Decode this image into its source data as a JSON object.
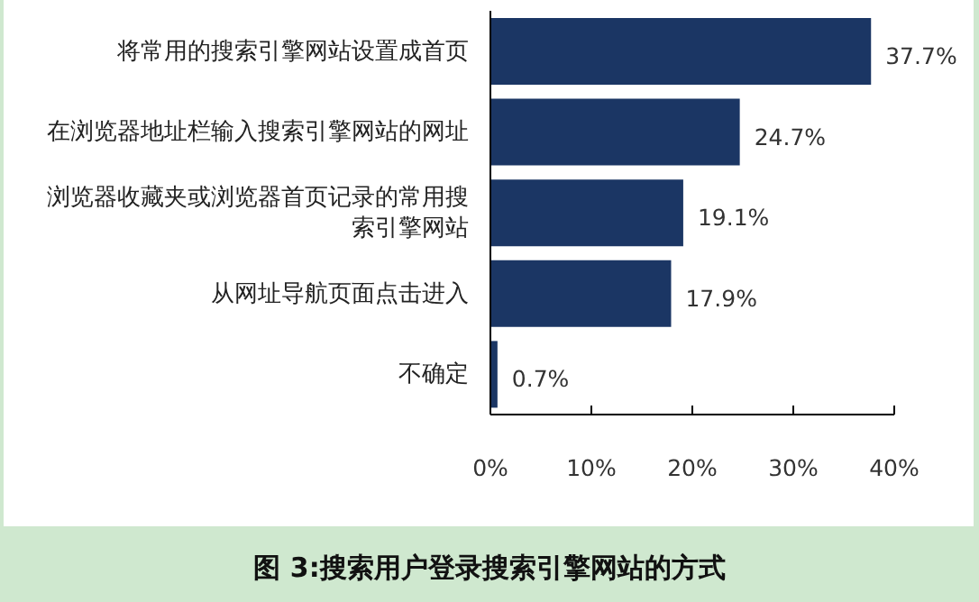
{
  "chart_data": {
    "type": "bar",
    "orientation": "horizontal",
    "title": "图 3:搜索用户登录搜索引擎网站的方式",
    "categories": [
      "将常用的搜索引擎网站设置成首页",
      "在浏览器地址栏输入搜索引擎网站的网址",
      "浏览器收藏夹或浏览器首页记录的常用搜索引擎网站",
      "从网址导航页面点击进入",
      "不确定"
    ],
    "values": [
      37.7,
      24.7,
      19.1,
      17.9,
      0.7
    ],
    "value_labels": [
      "37.7%",
      "24.7%",
      "19.1%",
      "17.9%",
      "0.7%"
    ],
    "color": "#1b3664",
    "xlim": [
      0,
      40
    ],
    "xticks": [
      {
        "value": 0,
        "label": "0%"
      },
      {
        "value": 10,
        "label": "10%"
      },
      {
        "value": 20,
        "label": "20%"
      },
      {
        "value": 30,
        "label": "30%"
      },
      {
        "value": 40,
        "label": "40%"
      }
    ],
    "grid": false,
    "legend": false
  }
}
